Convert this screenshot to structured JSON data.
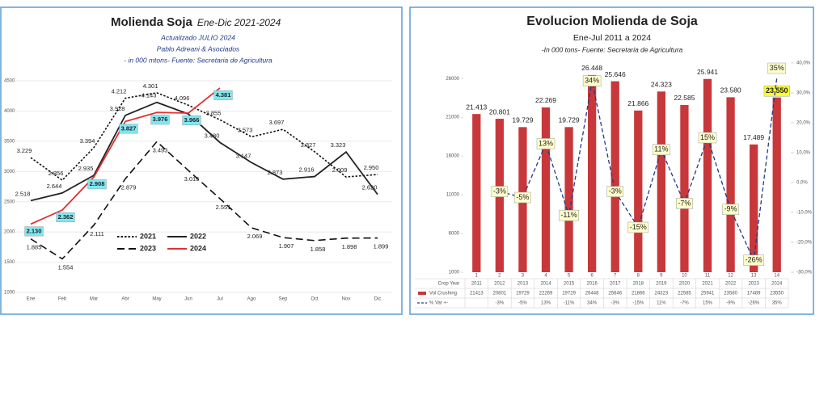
{
  "chart_data": [
    {
      "type": "line",
      "title": "Molienda  Soja",
      "title_period": "Ene-Dic 2021-2024",
      "subtitle_lines": [
        "Actualizado JULIO  2024",
        "Pablo Adreani & Asociados",
        "- in  000 mtons- Fuente: Secretaria de Agricultura"
      ],
      "categories": [
        "Ene",
        "Feb",
        "Mar",
        "Abr",
        "May",
        "Jun",
        "Jul",
        "Ago",
        "Sep",
        "Oct",
        "Nov",
        "Dic"
      ],
      "ylim": [
        1000,
        4500
      ],
      "yticks": [
        1000,
        1500,
        2000,
        2500,
        3000,
        3500,
        4000,
        4500
      ],
      "grid": true,
      "series": [
        {
          "name": "2021",
          "color": "#111111",
          "line_style": "dotted",
          "values": [
            3229,
            2856,
            3394,
            4212,
            4301,
            4096,
            3855,
            3573,
            3697,
            3327,
            2909,
            2950
          ],
          "value_labels": [
            "3.229",
            "2.856",
            "3.394",
            "4.212",
            "4.301",
            "4.096",
            "3.855",
            "3.573",
            "3.697",
            "3.327",
            "2.909",
            "2.950"
          ]
        },
        {
          "name": "2022",
          "color": "#222222",
          "line_style": "solid",
          "values": [
            2518,
            2644,
            2935,
            3928,
            4143,
            3950,
            3480,
            3147,
            2873,
            2916,
            3323,
            2620
          ],
          "value_labels": [
            "2.518",
            "2.644",
            "2.935",
            "3.928",
            "4.143",
            null,
            "3.480",
            "3.147",
            "2.873",
            "2.916",
            "3.323",
            "2.620"
          ]
        },
        {
          "name": "2023",
          "color": "#111111",
          "line_style": "dashed",
          "values": [
            1885,
            1554,
            2111,
            2879,
            3493,
            3016,
            2551,
            2069,
            1907,
            1858,
            1898,
            1899
          ],
          "value_labels": [
            "1.885",
            "1.554",
            "2.111",
            "2.879",
            "3.493",
            "3.016",
            "2.551",
            "2.069",
            "1.907",
            "1.858",
            "1.898",
            "1.899"
          ]
        },
        {
          "name": "2024",
          "color": "#e03030",
          "line_style": "solid",
          "label_background": "#7ee8f2",
          "values": [
            2130,
            2362,
            2908,
            3827,
            3976,
            3966,
            4381,
            null,
            null,
            null,
            null,
            null
          ],
          "value_labels": [
            "2.130",
            "2.362",
            "2.908",
            "3.827",
            "3.976",
            "3.966",
            "4.381",
            null,
            null,
            null,
            null,
            null
          ]
        }
      ]
    },
    {
      "type": "combo",
      "title": "Evolucion Molienda de Soja",
      "subtitle_lines": [
        "Ene-Jul  2011 a 2024",
        "-In  000 tons- Fuente: Secretaria de Agricultura"
      ],
      "categories": [
        "1",
        "2",
        "3",
        "4",
        "5",
        "6",
        "7",
        "8",
        "9",
        "10",
        "11",
        "12",
        "13",
        "14"
      ],
      "x_label": "Crop Year",
      "crop_years": [
        "2011",
        "2012",
        "2013",
        "2014",
        "2015",
        "2016",
        "2017",
        "2018",
        "2019",
        "2020",
        "2021",
        "2022",
        "2023",
        "2024"
      ],
      "ylim": [
        1000,
        28000
      ],
      "yticks": [
        1000,
        6000,
        11000,
        16000,
        21000,
        26000
      ],
      "y2lim": [
        -30,
        40
      ],
      "y2ticks": [
        {
          "value": -30,
          "label": "-30,0%"
        },
        {
          "value": -20,
          "label": "-20,0%"
        },
        {
          "value": -10,
          "label": "-10,0%"
        },
        {
          "value": 0,
          "label": "0,0%"
        },
        {
          "value": 10,
          "label": "10,0%"
        },
        {
          "value": 20,
          "label": "20,0%"
        },
        {
          "value": 30,
          "label": "30,0%"
        },
        {
          "value": 40,
          "label": "40,0%"
        }
      ],
      "series": [
        {
          "name": "Vol Crushing",
          "color": "#c8383a",
          "kind": "bar",
          "values": [
            21413,
            20801,
            19729,
            22269,
            19729,
            26448,
            25646,
            21866,
            24323,
            22585,
            25941,
            23580,
            17489,
            23550
          ],
          "value_labels": [
            "21.413",
            "20.801",
            "19.729",
            "22.269",
            "19.729",
            "26.448",
            "25.646",
            "21.866",
            "24.323",
            "22.585",
            "25.941",
            "23.580",
            "17.489",
            "23.550"
          ]
        },
        {
          "name": "% Var +-",
          "color": "#1f3a8a",
          "kind": "line",
          "axis": "y2",
          "values": [
            null,
            -3,
            -5,
            13,
            -11,
            34,
            -3,
            -15,
            11,
            -7,
            15,
            -9,
            -26,
            35
          ],
          "value_labels": [
            null,
            "-3%",
            "-5%",
            "13%",
            "-11%",
            "34%",
            "-3%",
            "-15%",
            "11%",
            "-7%",
            "15%",
            "-9%",
            "-26%",
            "35%"
          ]
        }
      ]
    }
  ]
}
